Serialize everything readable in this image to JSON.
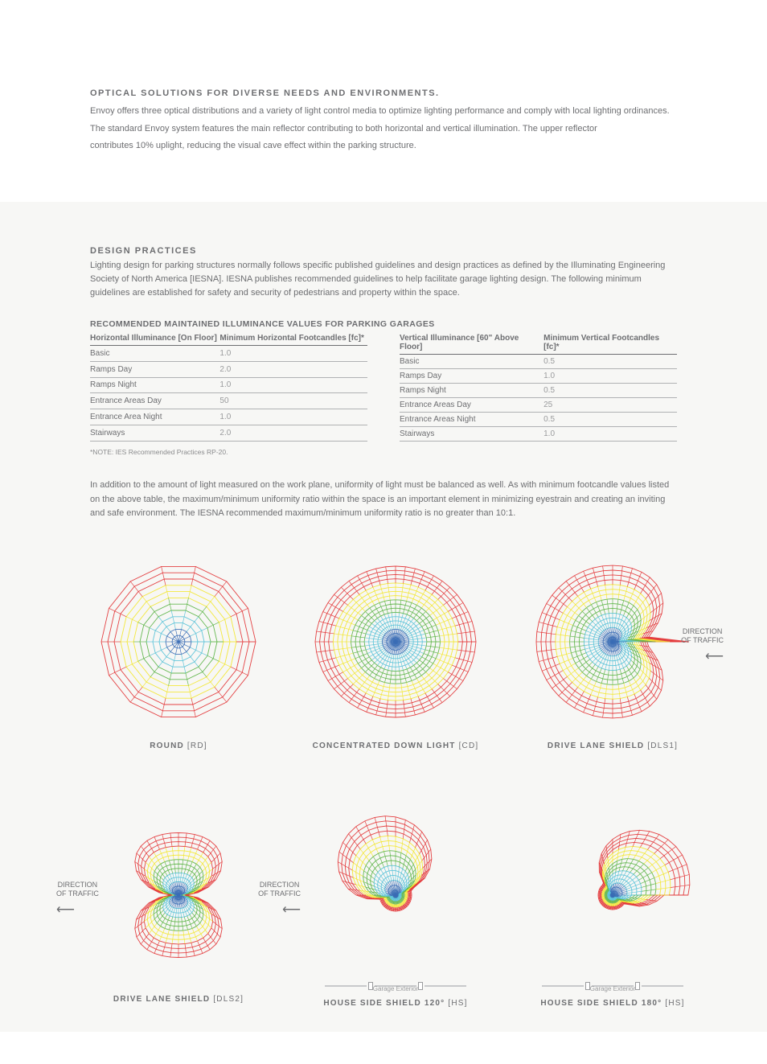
{
  "header": {
    "title": "OPTICAL SOLUTIONS FOR DIVERSE NEEDS AND ENVIRONMENTS.",
    "p1": "Envoy offers three optical distributions and a variety of light control media to optimize lighting performance and comply with local lighting ordinances.",
    "p2": "The standard Envoy system features the main reflector contributing to both horizontal and vertical illumination. The upper reflector",
    "p3": "contributes 10% uplight, reducing the visual cave effect within the parking structure."
  },
  "design": {
    "title": "DESIGN PRACTICES",
    "body": "Lighting design for parking structures normally follows specific published guidelines and design practices as defined by the Illuminating Engineering Society of North America [IESNA]. IESNA publishes recommended guidelines to help facilitate garage lighting design. The following minimum guidelines are established for safety and security of pedestrians and property within the space."
  },
  "tableTitle": "RECOMMENDED MAINTAINED ILLUMINANCE VALUES FOR PARKING GARAGES",
  "leftTable": {
    "colA": "Horizontal Illuminance [On Floor]",
    "colB": "Minimum Horizontal Footcandles [fc]*",
    "rows": [
      {
        "a": "Basic",
        "b": "1.0"
      },
      {
        "a": "Ramps Day",
        "b": "2.0"
      },
      {
        "a": "Ramps Night",
        "b": "1.0"
      },
      {
        "a": "Entrance Areas Day",
        "b": "50"
      },
      {
        "a": "Entrance Area Night",
        "b": "1.0"
      },
      {
        "a": "Stairways",
        "b": "2.0"
      }
    ]
  },
  "rightTable": {
    "colA": "Vertical Illuminance [60\" Above Floor]",
    "colB": "Minimum Vertical Footcandles [fc]*",
    "rows": [
      {
        "a": "Basic",
        "b": "0.5"
      },
      {
        "a": "Ramps Day",
        "b": "1.0"
      },
      {
        "a": "Ramps Night",
        "b": "0.5"
      },
      {
        "a": "Entrance Areas Day",
        "b": "25"
      },
      {
        "a": "Entrance Areas Night",
        "b": "0.5"
      },
      {
        "a": "Stairways",
        "b": "1.0"
      }
    ]
  },
  "note": "*NOTE: IES Recommended Practices RP-20.",
  "paragraph": "In addition to the amount of light measured on the work plane, uniformity of light must be balanced as well. As with minimum footcandle values listed on the above table, the maximum/minimum uniformity ratio within the space is an important element in minimizing eyestrain and creating an inviting and safe environment. The IESNA recommended maximum/minimum uniformity ratio is no greater than 10:1.",
  "diagrams": [
    {
      "label": "ROUND",
      "code": "[RD]"
    },
    {
      "label": "CONCENTRATED DOWN LIGHT",
      "code": "[CD]"
    },
    {
      "label": "DRIVE LANE SHIELD",
      "code": "[DLS1]"
    },
    {
      "label": "DRIVE LANE SHIELD",
      "code": "[DLS2]"
    },
    {
      "label": "HOUSE SIDE SHIELD 120°",
      "code": "[HS]"
    },
    {
      "label": "HOUSE SIDE SHIELD 180°",
      "code": "[HS]"
    }
  ],
  "directionLabel": "DIRECTION\nOF TRAFFIC",
  "garageExterior": "Garage Exterior",
  "colors": {
    "red": "#e3383a",
    "yellow": "#f2e733",
    "green": "#5fb54a",
    "cyan": "#5bc3d8",
    "blue": "#3b6db5",
    "meshOpacity": "0.95"
  }
}
